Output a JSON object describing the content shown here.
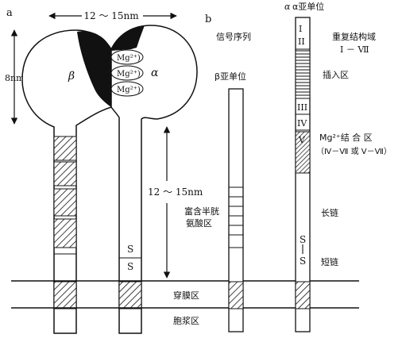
{
  "panel_a": {
    "label": "a",
    "width_dim": "12 ～ 15nm",
    "height_dim": "8nm",
    "beta": "β",
    "alpha": "α",
    "mg_ions": [
      "Mg²⁺)",
      "Mg²⁺)",
      "Mg²⁺)"
    ],
    "stem_dim": "12 ～ 15nm",
    "ss_top": "S",
    "ss_bottom": "S",
    "transmembrane": "穿膜区",
    "cytoplasm": "胞浆区"
  },
  "panel_b": {
    "label": "b",
    "signal_sequence": "信号序列",
    "beta_subunit": "β亚单位",
    "cys_rich": [
      "富含半胱",
      "氨酸区"
    ],
    "alpha_subunit": "α亚单位",
    "seg_i": "I",
    "seg_ii": "II",
    "seg_iii": "III",
    "seg_iv": "IV",
    "seg_v": "V",
    "repeat_domain": [
      "重复结构域",
      "I － Ⅶ"
    ],
    "insertion": "插入区",
    "mg_binding": [
      "Mg²⁺结 合 区",
      "（Ⅳ－Ⅶ 或 Ⅴ－Ⅶ）"
    ],
    "long_chain": "长链",
    "ss_top": "S",
    "ss_bottom": "S",
    "short_chain": "短链"
  }
}
